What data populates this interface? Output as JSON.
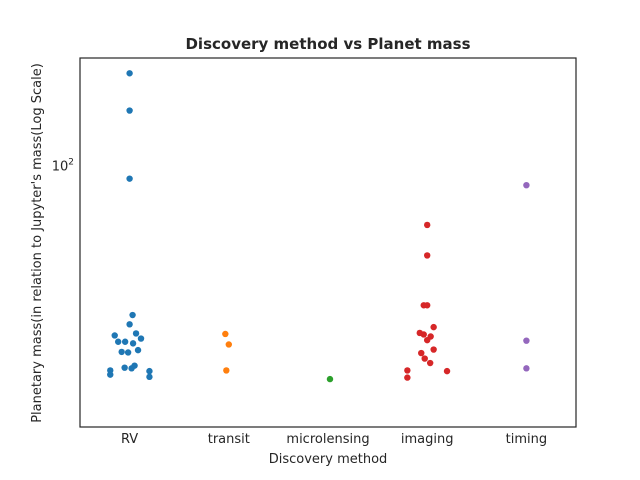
{
  "chart_data": {
    "type": "scatter",
    "style": "swarm",
    "title": "Discovery method vs Planet mass",
    "xlabel": "Discovery method",
    "ylabel": "Planetary mass(in relation to Jupyter's mass(Log Scale)",
    "categories": [
      "RV",
      "transit",
      "microlensing",
      "imaging",
      "timing"
    ],
    "y_scale": "log",
    "ylim": [
      9.8,
      260
    ],
    "y_ticks": [
      {
        "value": 100,
        "base": "10",
        "exponent": "2"
      }
    ],
    "grid": false,
    "legend": "none",
    "series": [
      {
        "category": "RV",
        "color": "#1f77b4",
        "points": [
          {
            "offset": 0.0,
            "y": 227
          },
          {
            "offset": 0.0,
            "y": 163
          },
          {
            "offset": 0.0,
            "y": 89
          },
          {
            "offset": 0.06,
            "y": 26.5
          },
          {
            "offset": 0.0,
            "y": 24.4
          },
          {
            "offset": 0.13,
            "y": 22.5
          },
          {
            "offset": -0.3,
            "y": 22.1
          },
          {
            "offset": 0.23,
            "y": 21.5
          },
          {
            "offset": -0.09,
            "y": 20.9
          },
          {
            "offset": -0.23,
            "y": 20.9
          },
          {
            "offset": 0.07,
            "y": 20.6
          },
          {
            "offset": 0.17,
            "y": 19.4
          },
          {
            "offset": -0.16,
            "y": 19.1
          },
          {
            "offset": -0.03,
            "y": 19.0
          },
          {
            "offset": 0.1,
            "y": 16.9
          },
          {
            "offset": -0.1,
            "y": 16.6
          },
          {
            "offset": 0.04,
            "y": 16.5
          },
          {
            "offset": -0.39,
            "y": 16.2
          },
          {
            "offset": 0.4,
            "y": 16.1
          },
          {
            "offset": -0.39,
            "y": 15.6
          },
          {
            "offset": 0.4,
            "y": 15.3
          }
        ]
      },
      {
        "category": "transit",
        "color": "#ff7f0e",
        "points": [
          {
            "offset": -0.07,
            "y": 22.4
          },
          {
            "offset": 0.0,
            "y": 20.4
          },
          {
            "offset": -0.05,
            "y": 16.2
          }
        ]
      },
      {
        "category": "microlensing",
        "color": "#2ca02c",
        "points": [
          {
            "offset": 0.04,
            "y": 15.0
          }
        ]
      },
      {
        "category": "imaging",
        "color": "#d62728",
        "points": [
          {
            "offset": 0.0,
            "y": 59.0
          },
          {
            "offset": 0.0,
            "y": 45.0
          },
          {
            "offset": -0.07,
            "y": 28.9
          },
          {
            "offset": 0.0,
            "y": 28.9
          },
          {
            "offset": 0.13,
            "y": 23.8
          },
          {
            "offset": -0.15,
            "y": 22.6
          },
          {
            "offset": -0.07,
            "y": 22.3
          },
          {
            "offset": 0.07,
            "y": 21.9
          },
          {
            "offset": 0.0,
            "y": 21.2
          },
          {
            "offset": 0.13,
            "y": 19.5
          },
          {
            "offset": -0.12,
            "y": 18.9
          },
          {
            "offset": -0.05,
            "y": 18.0
          },
          {
            "offset": 0.06,
            "y": 17.3
          },
          {
            "offset": -0.4,
            "y": 16.2
          },
          {
            "offset": 0.4,
            "y": 16.1
          },
          {
            "offset": -0.4,
            "y": 15.2
          }
        ]
      },
      {
        "category": "timing",
        "color": "#9467bd",
        "points": [
          {
            "offset": 0.0,
            "y": 84.0
          },
          {
            "offset": 0.0,
            "y": 21.1
          },
          {
            "offset": 0.0,
            "y": 16.5
          }
        ]
      }
    ]
  }
}
